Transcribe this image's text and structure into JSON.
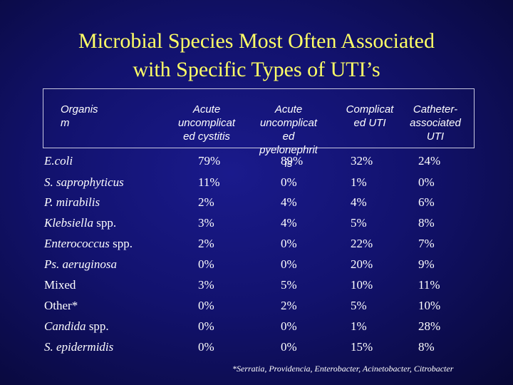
{
  "title": {
    "line1": "Microbial Species Most Often Associated",
    "line2": "with Specific Types of UTI’s"
  },
  "headers": [
    "Organis\nm",
    "Acute\nuncomplicat\ned cystitis",
    "Acute\nuncomplicat\ned\npyelonephrit\nis",
    "Complicat\ned UTI",
    "Catheter-\nassociated\nUTI"
  ],
  "rows": [
    {
      "organism": [
        {
          "t": "E.coli",
          "i": true
        }
      ],
      "values": [
        "79%",
        "89%",
        "32%",
        "24%"
      ]
    },
    {
      "organism": [
        {
          "t": "S. saprophyticus",
          "i": true
        }
      ],
      "values": [
        "11%",
        "0%",
        "1%",
        "0%"
      ]
    },
    {
      "organism": [
        {
          "t": "P. mirabilis",
          "i": true
        }
      ],
      "values": [
        "2%",
        "4%",
        "4%",
        "6%"
      ]
    },
    {
      "organism": [
        {
          "t": "Klebsiella",
          "i": true
        },
        {
          "t": " spp.",
          "i": false
        }
      ],
      "values": [
        "3%",
        "4%",
        "5%",
        "8%"
      ]
    },
    {
      "organism": [
        {
          "t": "Enterococcus",
          "i": true
        },
        {
          "t": " spp.",
          "i": false
        }
      ],
      "values": [
        "2%",
        "0%",
        "22%",
        "7%"
      ]
    },
    {
      "organism": [
        {
          "t": "Ps. aeruginosa",
          "i": true
        }
      ],
      "values": [
        "0%",
        "0%",
        "20%",
        "9%"
      ]
    },
    {
      "organism": [
        {
          "t": "Mixed",
          "i": false
        }
      ],
      "values": [
        "3%",
        "5%",
        "10%",
        "11%"
      ]
    },
    {
      "organism": [
        {
          "t": "Other*",
          "i": false
        }
      ],
      "values": [
        "0%",
        "2%",
        "5%",
        "10%"
      ]
    },
    {
      "organism": [
        {
          "t": "Candida",
          "i": true
        },
        {
          "t": " spp.",
          "i": false
        }
      ],
      "values": [
        "0%",
        "0%",
        "1%",
        "28%"
      ]
    },
    {
      "organism": [
        {
          "t": "S. epidermidis",
          "i": true
        }
      ],
      "values": [
        "0%",
        "0%",
        "15%",
        "8%"
      ]
    }
  ],
  "footnote": "*Serratia, Providencia, Enterobacter, Acinetobacter, Citrobacter",
  "colors": {
    "background": "#12126e",
    "title": "#ffff66",
    "text": "#ffffff"
  }
}
